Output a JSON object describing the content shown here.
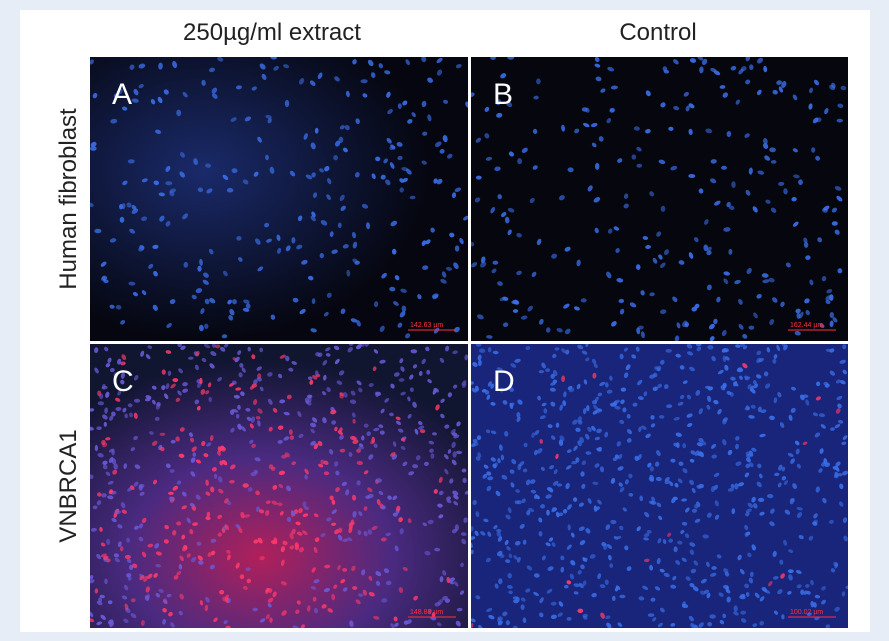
{
  "figure": {
    "columns": [
      "250µg/ml extract",
      "Control"
    ],
    "rows": [
      "Human fibroblast",
      "VNBRCA1"
    ],
    "panels": [
      {
        "letter": "A",
        "scale": "142.63 µm"
      },
      {
        "letter": "B",
        "scale": "162.44 µm"
      },
      {
        "letter": "C",
        "scale": "148.88 µm"
      },
      {
        "letter": "D",
        "scale": "100.02 µm"
      }
    ]
  }
}
